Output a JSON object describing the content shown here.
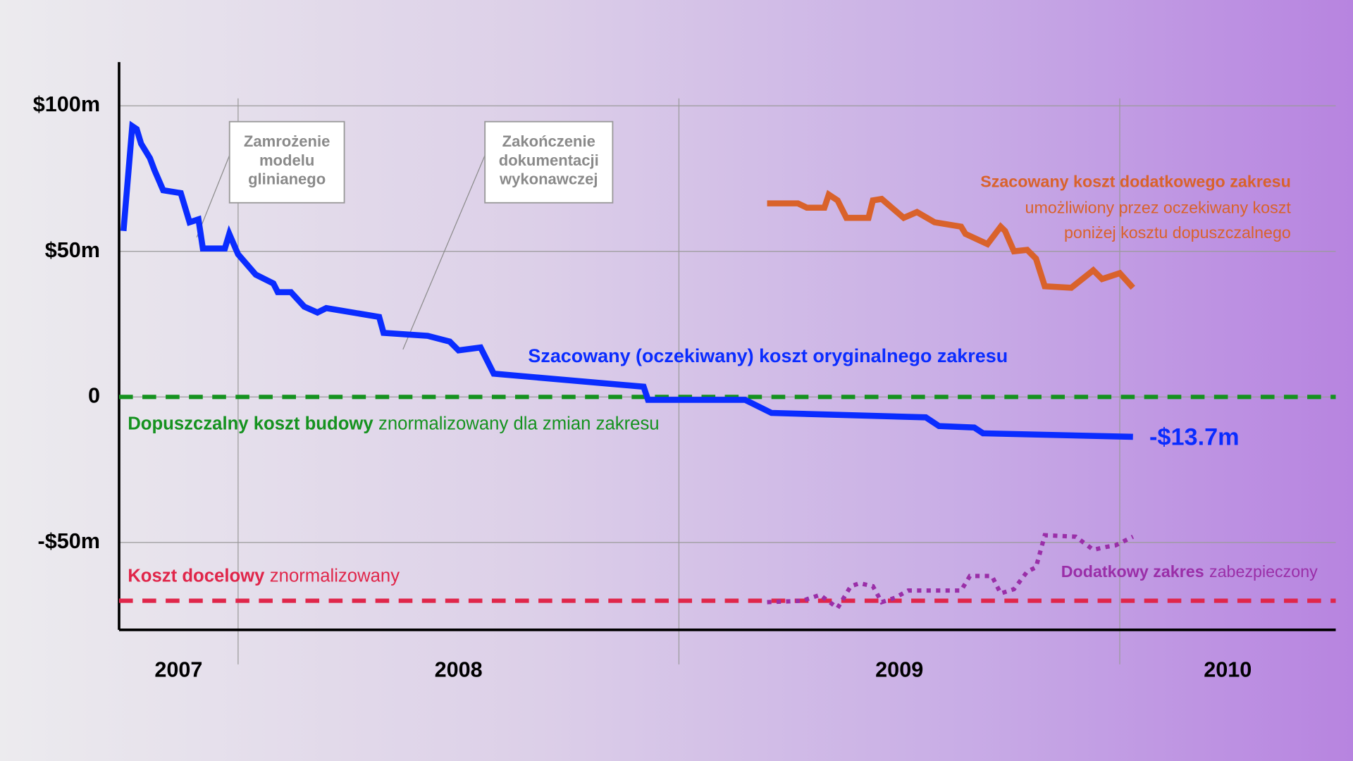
{
  "chart_data": {
    "type": "line",
    "xlim": [
      2007.73,
      2010.49
    ],
    "ylim": [
      -80,
      115
    ],
    "yticks": [
      {
        "value": 100,
        "label": "$100m"
      },
      {
        "value": 50,
        "label": "$50m"
      },
      0,
      {
        "value": -50,
        "label": "-$50m"
      }
    ],
    "grid": true,
    "x_gridlines": [
      2008,
      2009,
      2010
    ],
    "year_labels": [
      "2007",
      "2008",
      "2009",
      "2010"
    ],
    "series": [
      {
        "name": "Szacowany (oczekiwany) koszt oryginalnego zakresu",
        "color": "#0a2cff",
        "style": "solid",
        "x": [
          2007.74,
          2007.76,
          2007.77,
          2007.78,
          2007.8,
          2007.81,
          2007.83,
          2007.87,
          2007.89,
          2007.91,
          2007.92,
          2007.97,
          2007.98,
          2008.0,
          2008.04,
          2008.08,
          2008.09,
          2008.12,
          2008.15,
          2008.18,
          2008.2,
          2008.32,
          2008.33,
          2008.43,
          2008.48,
          2008.5,
          2008.55,
          2008.58,
          2008.92,
          2008.93,
          2009.15,
          2009.21,
          2009.56,
          2009.59,
          2009.67,
          2009.69,
          2010.03
        ],
        "values": [
          57,
          93,
          92,
          87,
          82,
          78,
          71,
          70,
          60,
          61,
          51,
          51,
          56,
          49,
          42,
          39,
          36,
          36,
          31,
          29,
          30.5,
          27.5,
          22,
          21,
          19,
          16,
          17,
          8,
          3.5,
          -1,
          -1,
          -5.5,
          -7,
          -10,
          -10.5,
          -12.5,
          -13.7
        ],
        "last_value_label": "-$13.7m"
      },
      {
        "name": "Szacowany koszt dodatkowego zakresu",
        "note": [
          "umożliwiony przez oczekiwany koszt",
          "poniżej kosztu dopuszczalnego"
        ],
        "color": "#d9622b",
        "style": "solid",
        "x": [
          2009.2,
          2009.27,
          2009.29,
          2009.33,
          2009.34,
          2009.36,
          2009.38,
          2009.43,
          2009.44,
          2009.46,
          2009.51,
          2009.54,
          2009.58,
          2009.64,
          2009.65,
          2009.7,
          2009.73,
          2009.74,
          2009.76,
          2009.79,
          2009.81,
          2009.83,
          2009.89,
          2009.94,
          2009.96,
          2010.0,
          2010.03
        ],
        "values": [
          66.5,
          66.5,
          65,
          65,
          69.5,
          67.5,
          61.5,
          61.5,
          67.5,
          68,
          61.5,
          63.5,
          60,
          58.5,
          56,
          52.5,
          58.5,
          57,
          50,
          50.5,
          47.5,
          38,
          37.5,
          43.5,
          40.5,
          42.5,
          37.5
        ]
      },
      {
        "name": "Dodatkowy zakres",
        "note": "zabezpieczony",
        "color": "#9a2ea8",
        "style": "dotted",
        "x": [
          2009.2,
          2009.28,
          2009.32,
          2009.36,
          2009.39,
          2009.41,
          2009.44,
          2009.46,
          2009.49,
          2009.52,
          2009.61,
          2009.64,
          2009.66,
          2009.71,
          2009.73,
          2009.76,
          2009.79,
          2009.81,
          2009.83,
          2009.9,
          2009.94,
          2009.97,
          2009.99,
          2010.03
        ],
        "values": [
          -70.5,
          -70,
          -68,
          -72.5,
          -65,
          -64,
          -65,
          -70.5,
          -69,
          -66.5,
          -66.5,
          -66.5,
          -61.5,
          -61.5,
          -67.5,
          -66,
          -60,
          -58.5,
          -47.5,
          -48,
          -52.5,
          -51.5,
          -51,
          -48
        ]
      }
    ],
    "reference_lines": [
      {
        "name": "Dopuszczalny koszt budowy",
        "note": "znormalizowany dla zmian zakresu",
        "value": 0,
        "color": "#15921f"
      },
      {
        "name": "Koszt docelowy",
        "note": "znormalizowany",
        "value": -70,
        "color": "#e0264a"
      }
    ],
    "annotations": [
      {
        "lines": [
          "Zamrożenie",
          "modelu",
          "glinianego"
        ]
      },
      {
        "lines": [
          "Zakończenie",
          "dokumentacji",
          "wykonawczej"
        ]
      }
    ]
  }
}
